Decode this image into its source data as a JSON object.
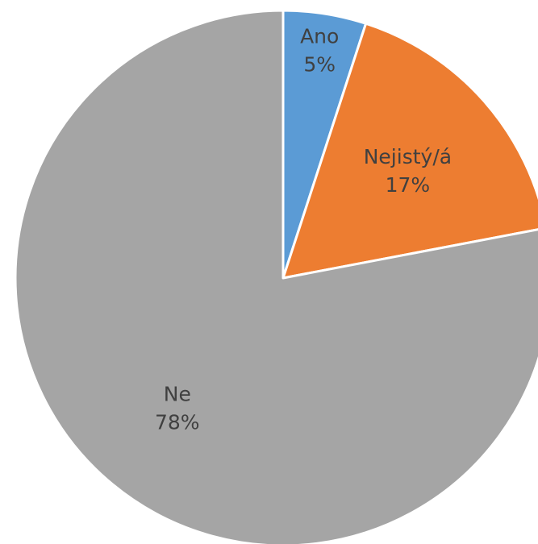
{
  "chart_data": {
    "type": "pie",
    "title": "",
    "start_angle_deg": 0,
    "direction": "clockwise",
    "legend": "none",
    "slices": [
      {
        "category": "Ano",
        "value": 5,
        "value_label": "5%",
        "color": "#5B9BD5"
      },
      {
        "category": "Nejistý/á",
        "value": 17,
        "value_label": "17%",
        "color": "#ED7D31"
      },
      {
        "category": "Ne",
        "value": 78,
        "value_label": "78%",
        "color": "#A5A5A5"
      }
    ]
  }
}
